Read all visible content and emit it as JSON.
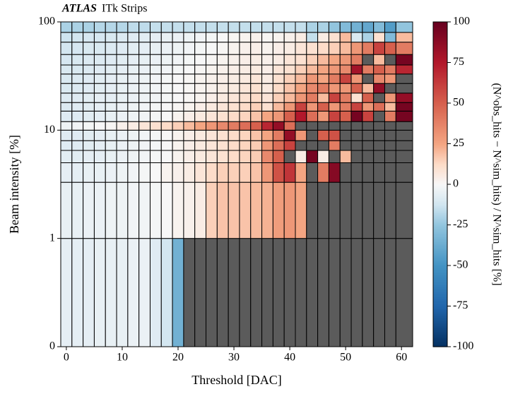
{
  "chart_data": {
    "type": "heatmap",
    "experiment": "ATLAS",
    "title": "ITk Strips",
    "x_label": "Threshold [DAC]",
    "y_label": "Beam intensity [%]",
    "colorbar_label": "(N^obs_hits − N^sim_hits) / N^sim_hits [%]",
    "colormap": "RdBu_r",
    "missing_color": "#5b5b5b",
    "xlim": [
      -1,
      62
    ],
    "xticks": [
      0,
      10,
      20,
      30,
      40,
      50,
      60
    ],
    "ylim": [
      0,
      100
    ],
    "yscale": "symlog",
    "yticks": [
      0,
      1,
      10,
      100
    ],
    "clim": [
      -100,
      100
    ],
    "colorbar_ticks": [
      -100,
      -75,
      -50,
      -25,
      0,
      25,
      50,
      75,
      100
    ],
    "xbins": [
      -1,
      1,
      3,
      5,
      7,
      9,
      11,
      13,
      15,
      17,
      19,
      21,
      23,
      25,
      27,
      29,
      31,
      33,
      35,
      37,
      39,
      41,
      43,
      45,
      47,
      49,
      51,
      53,
      55,
      57,
      59,
      62
    ],
    "ybins": [
      0,
      1,
      3.3,
      5,
      6.5,
      8,
      10,
      12,
      15,
      18,
      22,
      27,
      33,
      40,
      50,
      65,
      80,
      100
    ],
    "values": [
      [
        -6,
        -6,
        -6,
        -5,
        -5,
        -5,
        -4,
        -4,
        -8,
        -12,
        -35,
        null,
        null,
        null,
        null,
        null,
        null,
        null,
        null,
        null,
        null,
        null,
        null,
        null,
        null,
        null,
        null,
        null,
        null,
        null,
        null
      ],
      [
        -5,
        -5,
        -4,
        -4,
        -3,
        -3,
        -2,
        -2,
        -1,
        0,
        2,
        3,
        5,
        15,
        18,
        18,
        18,
        20,
        22,
        28,
        30,
        25,
        null,
        null,
        null,
        null,
        null,
        null,
        null,
        null,
        null
      ],
      [
        -6,
        -6,
        -5,
        -5,
        -4,
        -3,
        -2,
        -1,
        0,
        2,
        3,
        5,
        8,
        12,
        15,
        15,
        15,
        18,
        30,
        55,
        65,
        25,
        null,
        40,
        90,
        null,
        null,
        null,
        null,
        null,
        null
      ],
      [
        -7,
        -7,
        -6,
        -6,
        -5,
        -4,
        -3,
        -2,
        -1,
        0,
        2,
        4,
        6,
        8,
        10,
        12,
        14,
        16,
        35,
        50,
        null,
        5,
        95,
        5,
        null,
        20,
        null,
        null,
        null,
        null,
        null
      ],
      [
        -8,
        -8,
        -7,
        -6,
        -5,
        -4,
        -3,
        -2,
        -1,
        0,
        2,
        4,
        6,
        8,
        10,
        12,
        14,
        16,
        30,
        45,
        60,
        null,
        null,
        null,
        40,
        null,
        null,
        null,
        null,
        null,
        null
      ],
      [
        -8,
        -8,
        -7,
        -6,
        -5,
        -4,
        -3,
        -2,
        -1,
        0,
        2,
        4,
        6,
        8,
        10,
        12,
        14,
        18,
        25,
        40,
        85,
        30,
        null,
        50,
        55,
        null,
        null,
        null,
        null,
        null,
        null
      ],
      [
        -3,
        -2,
        -1,
        0,
        1,
        3,
        5,
        8,
        10,
        12,
        15,
        20,
        25,
        30,
        35,
        40,
        45,
        50,
        70,
        85,
        45,
        null,
        null,
        null,
        null,
        null,
        null,
        null,
        null,
        null,
        null
      ],
      [
        -8,
        -8,
        -7,
        -6,
        -5,
        -4,
        -3,
        -2,
        -1,
        0,
        2,
        4,
        6,
        8,
        10,
        12,
        14,
        18,
        25,
        30,
        50,
        75,
        45,
        30,
        60,
        50,
        95,
        60,
        null,
        40,
        95
      ],
      [
        -9,
        -8,
        -7,
        -6,
        -5,
        -4,
        -3,
        -2,
        -1,
        0,
        1,
        2,
        4,
        6,
        8,
        10,
        12,
        15,
        10,
        20,
        30,
        60,
        30,
        50,
        30,
        40,
        60,
        30,
        45,
        20,
        95
      ],
      [
        -9,
        -8,
        -7,
        -6,
        -6,
        -5,
        -4,
        -3,
        -2,
        -1,
        0,
        1,
        2,
        4,
        6,
        8,
        10,
        12,
        8,
        15,
        20,
        30,
        40,
        20,
        60,
        40,
        10,
        50,
        null,
        30,
        85
      ],
      [
        -10,
        -9,
        -8,
        -7,
        -6,
        -5,
        -4,
        -3,
        -2,
        -1,
        0,
        1,
        2,
        3,
        5,
        6,
        8,
        10,
        6,
        12,
        18,
        25,
        35,
        40,
        30,
        30,
        50,
        20,
        85,
        null,
        null
      ],
      [
        -10,
        -9,
        -8,
        -7,
        -6,
        -5,
        -4,
        -3,
        -2,
        -1,
        0,
        1,
        2,
        3,
        4,
        5,
        6,
        8,
        5,
        10,
        15,
        20,
        30,
        25,
        40,
        60,
        30,
        null,
        35,
        30,
        null
      ],
      [
        -10,
        -10,
        -9,
        -8,
        -7,
        -6,
        -5,
        -4,
        -3,
        -2,
        -1,
        0,
        1,
        2,
        3,
        4,
        5,
        6,
        4,
        8,
        10,
        15,
        20,
        25,
        30,
        35,
        80,
        40,
        50,
        40,
        70
      ],
      [
        -11,
        -10,
        -9,
        -9,
        -8,
        -7,
        -6,
        -5,
        -4,
        -3,
        -2,
        -1,
        0,
        1,
        2,
        3,
        4,
        5,
        3,
        5,
        8,
        10,
        15,
        20,
        25,
        30,
        40,
        null,
        20,
        null,
        95
      ],
      [
        -12,
        -11,
        -10,
        -10,
        -9,
        -8,
        -7,
        -6,
        -5,
        -4,
        -3,
        -2,
        -1,
        0,
        1,
        2,
        3,
        4,
        2,
        4,
        5,
        8,
        10,
        12,
        15,
        20,
        30,
        40,
        60,
        50,
        40
      ],
      [
        -13,
        -12,
        -11,
        -11,
        -10,
        -9,
        -8,
        -7,
        -6,
        -5,
        -4,
        -3,
        -2,
        -1,
        0,
        1,
        2,
        3,
        1,
        2,
        3,
        5,
        -15,
        5,
        10,
        20,
        -10,
        -20,
        10,
        -30,
        20
      ],
      [
        -20,
        -20,
        -20,
        -18,
        -18,
        -18,
        -16,
        -16,
        -15,
        -15,
        -15,
        -15,
        -15,
        -15,
        -15,
        -15,
        -15,
        -15,
        -15,
        -15,
        -15,
        -15,
        -20,
        -20,
        -25,
        -30,
        -35,
        -40,
        -30,
        -45,
        -25
      ]
    ]
  }
}
